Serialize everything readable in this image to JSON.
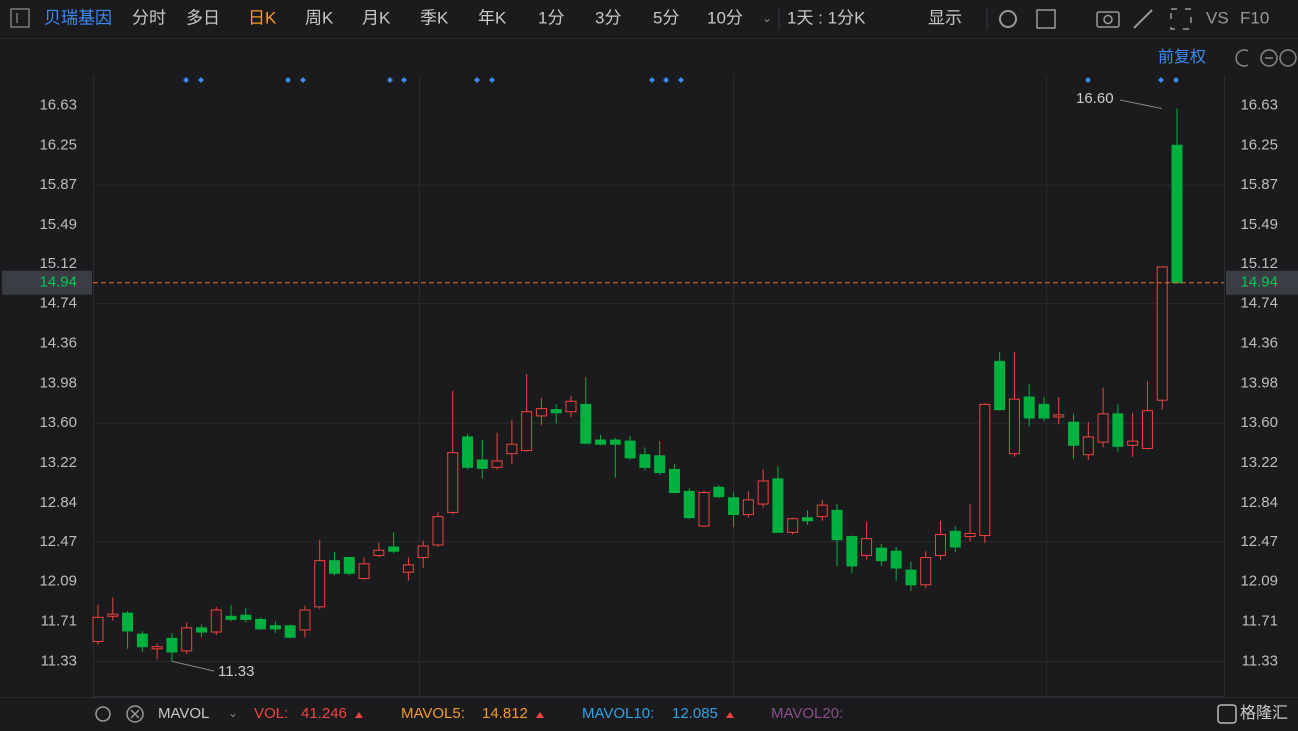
{
  "toolbar": {
    "stock": "贝瑞基因",
    "tabs": [
      "分时",
      "多日",
      "日K",
      "周K",
      "月K",
      "季K",
      "年K",
      "1分",
      "3分",
      "5分",
      "10分"
    ],
    "active_tab": 2,
    "period": "1天 : 1分K",
    "display": "显示",
    "vs": "VS",
    "f10": "F10",
    "adjust": "前复权"
  },
  "indicator_bar": {
    "name": "MAVOL",
    "items": [
      {
        "label": "VOL:",
        "value": "41.246"
      },
      {
        "label": "MAVOL5:",
        "value": "14.812"
      },
      {
        "label": "MAVOL10:",
        "value": "12.085"
      },
      {
        "label": "MAVOL20:"
      }
    ]
  },
  "logo": "格隆汇",
  "chart_data": {
    "type": "candlestick",
    "up_color": "#f0433f",
    "down_color": "#00b140",
    "ohlc": [
      [
        11.52,
        11.87,
        11.49,
        11.75
      ],
      [
        11.76,
        11.94,
        11.72,
        11.78
      ],
      [
        11.79,
        11.81,
        11.45,
        11.62
      ],
      [
        11.59,
        11.62,
        11.42,
        11.47
      ],
      [
        11.45,
        11.5,
        11.35,
        11.47
      ],
      [
        11.55,
        11.6,
        11.33,
        11.42
      ],
      [
        11.43,
        11.7,
        11.4,
        11.65
      ],
      [
        11.65,
        11.68,
        11.56,
        11.61
      ],
      [
        11.61,
        11.85,
        11.58,
        11.82
      ],
      [
        11.76,
        11.87,
        11.71,
        11.73
      ],
      [
        11.77,
        11.84,
        11.7,
        11.73
      ],
      [
        11.73,
        11.75,
        11.63,
        11.64
      ],
      [
        11.67,
        11.71,
        11.6,
        11.64
      ],
      [
        11.67,
        11.68,
        11.55,
        11.56
      ],
      [
        11.63,
        11.86,
        11.56,
        11.82
      ],
      [
        11.85,
        12.49,
        11.83,
        12.29
      ],
      [
        12.29,
        12.37,
        12.15,
        12.17
      ],
      [
        12.32,
        12.33,
        12.15,
        12.17
      ],
      [
        12.12,
        12.32,
        12.11,
        12.26
      ],
      [
        12.34,
        12.46,
        12.32,
        12.39
      ],
      [
        12.42,
        12.56,
        12.36,
        12.38
      ],
      [
        12.18,
        12.32,
        12.1,
        12.25
      ],
      [
        12.32,
        12.48,
        12.22,
        12.43
      ],
      [
        12.44,
        12.75,
        12.42,
        12.71
      ],
      [
        12.75,
        13.91,
        12.73,
        13.32
      ],
      [
        13.47,
        13.5,
        13.16,
        13.18
      ],
      [
        13.25,
        13.44,
        13.07,
        13.17
      ],
      [
        13.18,
        13.51,
        13.16,
        13.24
      ],
      [
        13.31,
        13.63,
        13.21,
        13.4
      ],
      [
        13.34,
        14.07,
        13.33,
        13.71
      ],
      [
        13.67,
        13.84,
        13.58,
        13.74
      ],
      [
        13.73,
        13.78,
        13.6,
        13.7
      ],
      [
        13.71,
        13.86,
        13.66,
        13.81
      ],
      [
        13.78,
        14.04,
        13.4,
        13.41
      ],
      [
        13.44,
        13.49,
        13.39,
        13.4
      ],
      [
        13.44,
        13.46,
        13.08,
        13.4
      ],
      [
        13.43,
        13.48,
        13.25,
        13.27
      ],
      [
        13.3,
        13.37,
        13.15,
        13.18
      ],
      [
        13.29,
        13.43,
        13.11,
        13.13
      ],
      [
        13.16,
        13.21,
        12.93,
        12.94
      ],
      [
        12.95,
        12.98,
        12.69,
        12.7
      ],
      [
        12.62,
        12.96,
        12.61,
        12.94
      ],
      [
        12.99,
        13.01,
        12.89,
        12.9
      ],
      [
        12.89,
        12.94,
        12.61,
        12.73
      ],
      [
        12.73,
        12.95,
        12.7,
        12.87
      ],
      [
        12.83,
        13.16,
        12.8,
        13.05
      ],
      [
        13.07,
        13.19,
        12.56,
        12.56
      ],
      [
        12.56,
        12.7,
        12.54,
        12.69
      ],
      [
        12.7,
        12.77,
        12.63,
        12.67
      ],
      [
        12.71,
        12.87,
        12.67,
        12.82
      ],
      [
        12.77,
        12.83,
        12.24,
        12.49
      ],
      [
        12.52,
        12.53,
        12.17,
        12.24
      ],
      [
        12.34,
        12.66,
        12.3,
        12.5
      ],
      [
        12.41,
        12.45,
        12.24,
        12.29
      ],
      [
        12.38,
        12.42,
        12.1,
        12.22
      ],
      [
        12.2,
        12.28,
        12.0,
        12.06
      ],
      [
        12.06,
        12.38,
        12.03,
        12.32
      ],
      [
        12.34,
        12.67,
        12.3,
        12.54
      ],
      [
        12.57,
        12.62,
        12.37,
        12.42
      ],
      [
        12.52,
        12.83,
        12.47,
        12.55
      ],
      [
        12.53,
        13.79,
        12.46,
        13.78
      ],
      [
        14.19,
        14.28,
        13.72,
        13.73
      ],
      [
        13.31,
        14.28,
        13.28,
        13.83
      ],
      [
        13.85,
        13.97,
        13.57,
        13.65
      ],
      [
        13.78,
        13.85,
        13.62,
        13.65
      ],
      [
        13.66,
        13.85,
        13.59,
        13.68
      ],
      [
        13.61,
        13.69,
        13.26,
        13.39
      ],
      [
        13.3,
        13.61,
        13.25,
        13.47
      ],
      [
        13.42,
        13.94,
        13.37,
        13.69
      ],
      [
        13.69,
        13.78,
        13.33,
        13.38
      ],
      [
        13.39,
        13.7,
        13.28,
        13.43
      ],
      [
        13.36,
        14.0,
        13.35,
        13.72
      ],
      [
        13.82,
        15.09,
        13.73,
        15.09
      ],
      [
        16.25,
        16.6,
        14.94,
        14.94
      ]
    ],
    "ylim": [
      11.0,
      16.92
    ],
    "yticks": [
      11.33,
      11.71,
      12.09,
      12.47,
      12.84,
      13.22,
      {
        "value": 13.6,
        "label": "13.60"
      },
      13.98,
      14.36,
      14.74,
      15.12,
      15.49,
      15.87,
      16.25,
      16.63
    ],
    "current": 14.94,
    "max_label": {
      "value": 16.6,
      "label": "16.60"
    },
    "min_label": 11.33,
    "grid": true
  }
}
